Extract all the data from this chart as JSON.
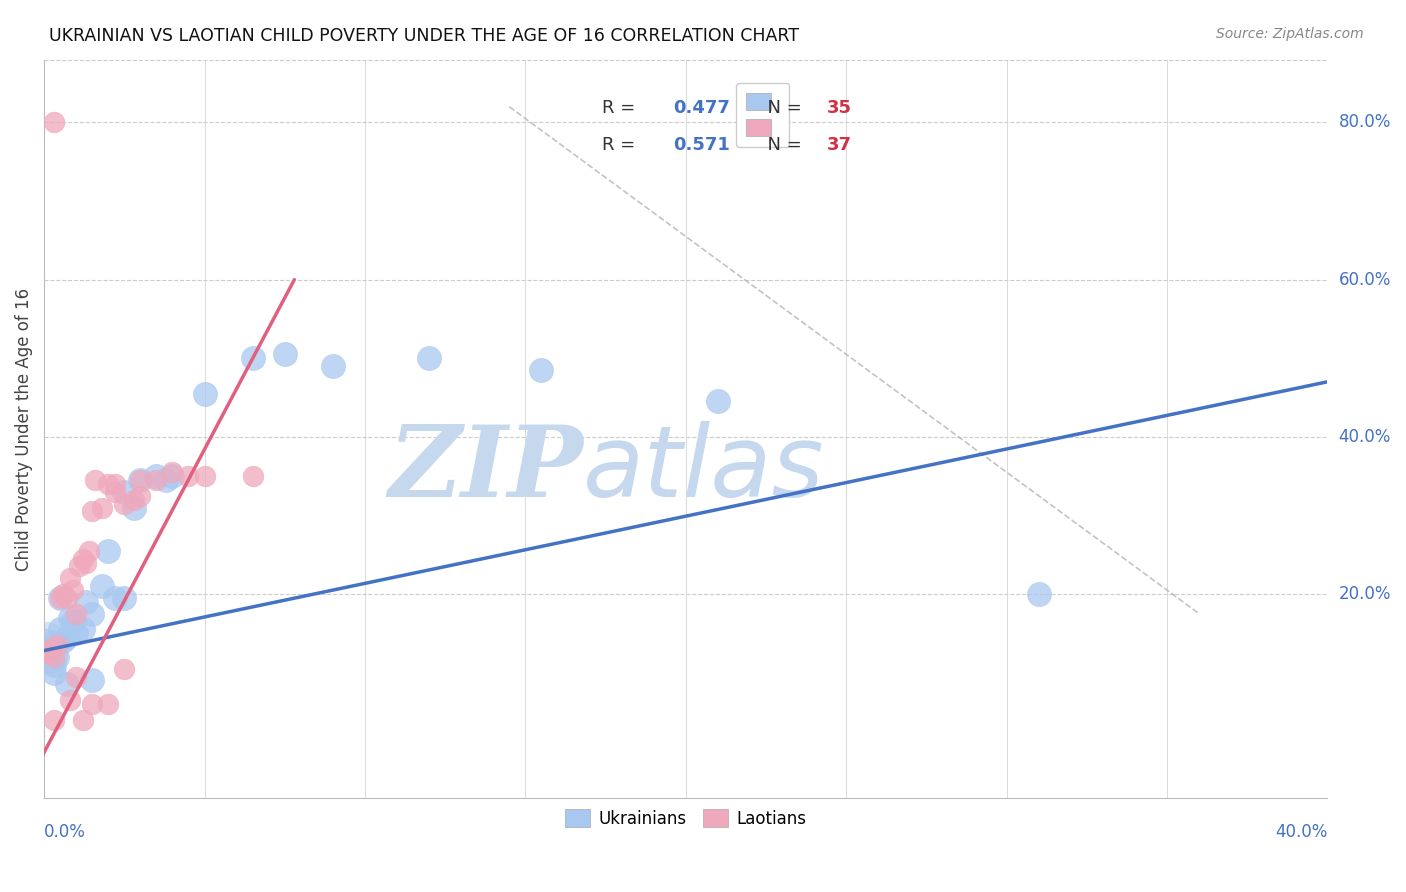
{
  "title": "UKRAINIAN VS LAOTIAN CHILD POVERTY UNDER THE AGE OF 16 CORRELATION CHART",
  "source": "Source: ZipAtlas.com",
  "ylabel": "Child Poverty Under the Age of 16",
  "ytick_labels": [
    "80.0%",
    "60.0%",
    "40.0%",
    "20.0%"
  ],
  "ytick_values": [
    0.8,
    0.6,
    0.4,
    0.2
  ],
  "xtick_labels": [
    "0.0%",
    "40.0%"
  ],
  "xlim": [
    0.0,
    0.4
  ],
  "ylim": [
    -0.06,
    0.88
  ],
  "ukrainian_R": "0.477",
  "ukrainian_N": "35",
  "laotian_R": "0.571",
  "laotian_N": "37",
  "ukrainian_color": "#A8C8F0",
  "laotian_color": "#F0A8BC",
  "ukrainian_line_color": "#4472C4",
  "laotian_line_color": "#E06080",
  "watermark_zip": "ZIP",
  "watermark_atlas": "atlas",
  "watermark_color": "#C5D8EE",
  "background_color": "#FFFFFF",
  "grid_color": "#CCCCCC",
  "ukr_line_x0": 0.0,
  "ukr_line_y0": 0.128,
  "ukr_line_x1": 0.4,
  "ukr_line_y1": 0.47,
  "lao_line_x0": -0.005,
  "lao_line_y0": -0.04,
  "lao_line_x1": 0.078,
  "lao_line_y1": 0.6,
  "diag_line_x0": 0.145,
  "diag_line_y0": 0.82,
  "diag_line_x1": 0.36,
  "diag_line_y1": 0.175,
  "ukrainian_x": [
    0.001,
    0.002,
    0.003,
    0.004,
    0.005,
    0.006,
    0.007,
    0.008,
    0.009,
    0.01,
    0.012,
    0.013,
    0.015,
    0.018,
    0.02,
    0.022,
    0.025,
    0.028,
    0.03,
    0.035,
    0.038,
    0.04,
    0.05,
    0.065,
    0.075,
    0.09,
    0.12,
    0.155,
    0.21,
    0.31,
    0.005,
    0.003,
    0.007,
    0.015,
    0.025
  ],
  "ukrainian_y": [
    0.14,
    0.13,
    0.11,
    0.12,
    0.155,
    0.14,
    0.145,
    0.17,
    0.165,
    0.15,
    0.155,
    0.19,
    0.175,
    0.21,
    0.255,
    0.195,
    0.33,
    0.31,
    0.345,
    0.35,
    0.345,
    0.35,
    0.455,
    0.5,
    0.505,
    0.49,
    0.5,
    0.485,
    0.445,
    0.2,
    0.195,
    0.1,
    0.085,
    0.09,
    0.195
  ],
  "laotian_x": [
    0.001,
    0.002,
    0.003,
    0.004,
    0.005,
    0.006,
    0.007,
    0.008,
    0.009,
    0.01,
    0.011,
    0.012,
    0.013,
    0.014,
    0.015,
    0.016,
    0.018,
    0.02,
    0.022,
    0.025,
    0.028,
    0.03,
    0.035,
    0.04,
    0.045,
    0.05,
    0.065,
    0.003,
    0.008,
    0.015,
    0.022,
    0.03,
    0.01,
    0.02,
    0.003,
    0.012,
    0.025
  ],
  "laotian_y": [
    0.125,
    0.13,
    0.12,
    0.135,
    0.195,
    0.2,
    0.195,
    0.22,
    0.205,
    0.175,
    0.235,
    0.245,
    0.24,
    0.255,
    0.305,
    0.345,
    0.31,
    0.34,
    0.33,
    0.315,
    0.32,
    0.345,
    0.345,
    0.355,
    0.35,
    0.35,
    0.35,
    0.8,
    0.065,
    0.06,
    0.34,
    0.325,
    0.095,
    0.06,
    0.04,
    0.04,
    0.105
  ]
}
